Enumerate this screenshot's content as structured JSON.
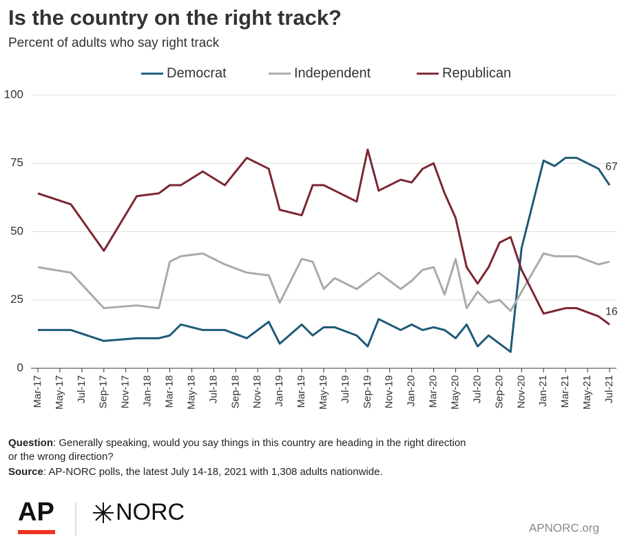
{
  "chart_data": {
    "type": "line",
    "title": "Is the country on the right track?",
    "subtitle": "Percent of adults who say right track",
    "x": [
      "2017-03",
      "2017-06",
      "2017-09",
      "2017-12",
      "2018-02",
      "2018-03",
      "2018-04",
      "2018-06",
      "2018-08",
      "2018-10",
      "2018-12",
      "2019-01",
      "2019-03",
      "2019-04",
      "2019-05",
      "2019-06",
      "2019-08",
      "2019-09",
      "2019-10",
      "2019-12",
      "2020-01",
      "2020-02",
      "2020-03",
      "2020-04",
      "2020-05",
      "2020-06",
      "2020-07",
      "2020-08",
      "2020-09",
      "2020-10",
      "2020-11",
      "2021-01",
      "2021-02",
      "2021-03",
      "2021-04",
      "2021-06",
      "2021-07"
    ],
    "series": [
      {
        "name": "Democrat",
        "color": "#1d5a78",
        "values": [
          14,
          14,
          10,
          11,
          11,
          12,
          16,
          14,
          14,
          11,
          17,
          9,
          16,
          12,
          15,
          15,
          12,
          8,
          18,
          14,
          16,
          14,
          15,
          14,
          11,
          16,
          8,
          12,
          9,
          6,
          44,
          76,
          74,
          77,
          77,
          73,
          67
        ]
      },
      {
        "name": "Independent",
        "color": "#aaaaaa",
        "values": [
          37,
          35,
          22,
          23,
          22,
          39,
          41,
          42,
          38,
          35,
          34,
          24,
          40,
          39,
          29,
          33,
          29,
          32,
          35,
          29,
          32,
          36,
          37,
          27,
          40,
          22,
          28,
          24,
          25,
          21,
          28,
          42,
          41,
          41,
          41,
          38,
          39
        ]
      },
      {
        "name": "Republican",
        "color": "#7b2631",
        "values": [
          64,
          60,
          43,
          63,
          64,
          67,
          67,
          72,
          67,
          77,
          73,
          58,
          56,
          67,
          67,
          65,
          61,
          80,
          65,
          69,
          68,
          73,
          75,
          64,
          55,
          37,
          31,
          37,
          46,
          48,
          36,
          20,
          21,
          22,
          22,
          19,
          16
        ]
      }
    ],
    "xlim": [
      "2017-03",
      "2021-07"
    ],
    "xticks": [
      {
        "value": "2017-03",
        "label": "Mar-17"
      },
      {
        "value": "2017-05",
        "label": "May-17"
      },
      {
        "value": "2017-07",
        "label": "Jul-17"
      },
      {
        "value": "2017-09",
        "label": "Sep-17"
      },
      {
        "value": "2017-11",
        "label": "Nov-17"
      },
      {
        "value": "2018-01",
        "label": "Jan-18"
      },
      {
        "value": "2018-03",
        "label": "Mar-18"
      },
      {
        "value": "2018-05",
        "label": "May-18"
      },
      {
        "value": "2018-07",
        "label": "Jul-18"
      },
      {
        "value": "2018-09",
        "label": "Sep-18"
      },
      {
        "value": "2018-11",
        "label": "Nov-18"
      },
      {
        "value": "2019-01",
        "label": "Jan-19"
      },
      {
        "value": "2019-03",
        "label": "Mar-19"
      },
      {
        "value": "2019-05",
        "label": "May-19"
      },
      {
        "value": "2019-07",
        "label": "Jul-19"
      },
      {
        "value": "2019-09",
        "label": "Sep-19"
      },
      {
        "value": "2019-11",
        "label": "Nov-19"
      },
      {
        "value": "2020-01",
        "label": "Jan-20"
      },
      {
        "value": "2020-03",
        "label": "Mar-20"
      },
      {
        "value": "2020-05",
        "label": "May-20"
      },
      {
        "value": "2020-07",
        "label": "Jul-20"
      },
      {
        "value": "2020-09",
        "label": "Sep-20"
      },
      {
        "value": "2020-11",
        "label": "Nov-20"
      },
      {
        "value": "2021-01",
        "label": "Jan-21"
      },
      {
        "value": "2021-03",
        "label": "Mar-21"
      },
      {
        "value": "2021-05",
        "label": "May-21"
      },
      {
        "value": "2021-07",
        "label": "Jul-21"
      }
    ],
    "ylim": [
      0,
      100
    ],
    "yticks": [
      0,
      25,
      50,
      75,
      100
    ],
    "legend": "top",
    "notes": {
      "question_label": "Question",
      "question": ": Generally speaking, would you say things in this country are heading in the right direction or the wrong direction?",
      "source_label": "Source",
      "source": ": AP-NORC polls, the latest July 14-18, 2021 with 1,308 adults nationwide."
    },
    "branding": {
      "ap": "AP",
      "norc": "NORC",
      "site": "APNORC.org"
    }
  }
}
